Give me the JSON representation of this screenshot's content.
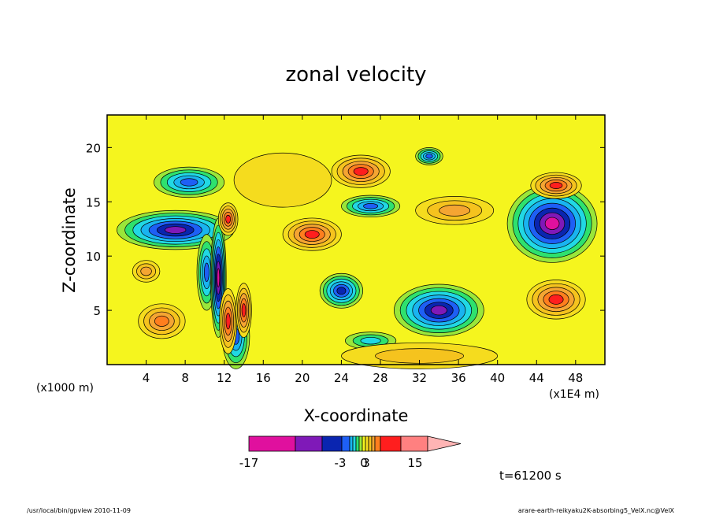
{
  "chart_data": {
    "type": "heatmap",
    "title": "zonal velocity",
    "xlabel": "X-coordinate",
    "ylabel": "Z-coordinate",
    "x_unit_left": "(x1000 m)",
    "x_unit_right": "(x1E4 m)",
    "x_ticks": [
      "4",
      "8",
      "12",
      "16",
      "20",
      "24",
      "28",
      "32",
      "36",
      "40",
      "44",
      "48"
    ],
    "y_ticks": [
      "5",
      "10",
      "15",
      "20"
    ],
    "xlim": [
      0,
      51
    ],
    "ylim": [
      0,
      23
    ],
    "colorbar": {
      "levels": [
        -17,
        -9,
        -6,
        -3,
        -2.4,
        -1.8,
        -1.2,
        -0.6,
        0,
        0.6,
        1.2,
        1.8,
        2.4,
        3,
        6,
        9,
        15
      ],
      "colors": [
        "#e0109e",
        "#7f19b8",
        "#0a25b0",
        "#1e5ff5",
        "#19b4f0",
        "#21d8e4",
        "#2ee16e",
        "#9ae63a",
        "#f5f51e",
        "#f5dc1e",
        "#f5c31e",
        "#f5a532",
        "#ff7e1e",
        "#ff1e1e",
        "#ff8080",
        "#ffb4b4"
      ],
      "tick_labels": [
        "-17",
        "-3",
        "0",
        "3",
        "15"
      ]
    },
    "time_label": "t=61200 s",
    "blobs": [
      {
        "x": 45.6,
        "z": 13.0,
        "rx": 4.6,
        "rz": 3.6,
        "v": -11
      },
      {
        "x": 34.0,
        "z": 5.0,
        "rx": 4.6,
        "rz": 2.4,
        "v": -9
      },
      {
        "x": 7.0,
        "z": 12.4,
        "rx": 6.0,
        "rz": 1.8,
        "v": -8
      },
      {
        "x": 24.0,
        "z": 6.8,
        "rx": 2.2,
        "rz": 1.6,
        "v": -4
      },
      {
        "x": 27.0,
        "z": 14.6,
        "rx": 3.0,
        "rz": 1.0,
        "v": -3
      },
      {
        "x": 33.0,
        "z": 19.2,
        "rx": 1.4,
        "rz": 0.8,
        "v": -3
      },
      {
        "x": 8.4,
        "z": 16.8,
        "rx": 3.6,
        "rz": 1.4,
        "v": -3
      },
      {
        "x": 13.2,
        "z": 2.6,
        "rx": 1.4,
        "rz": 3.0,
        "v": -3
      },
      {
        "x": 10.2,
        "z": 8.5,
        "rx": 1.0,
        "rz": 3.5,
        "v": -3
      },
      {
        "x": 27.0,
        "z": 2.2,
        "rx": 2.6,
        "rz": 0.8,
        "v": -1.5
      },
      {
        "x": 11.4,
        "z": 8.0,
        "rx": 0.8,
        "rz": 5.5,
        "v": -14
      },
      {
        "x": 12.4,
        "z": 4.0,
        "rx": 0.9,
        "rz": 3.0,
        "v": 5
      },
      {
        "x": 14.0,
        "z": 5.0,
        "rx": 0.8,
        "rz": 2.5,
        "v": 4
      },
      {
        "x": 12.4,
        "z": 13.4,
        "rx": 1.0,
        "rz": 1.5,
        "v": 3
      },
      {
        "x": 26.0,
        "z": 17.8,
        "rx": 3.0,
        "rz": 1.5,
        "v": 4
      },
      {
        "x": 21.0,
        "z": 12.0,
        "rx": 3.0,
        "rz": 1.5,
        "v": 4
      },
      {
        "x": 35.6,
        "z": 14.2,
        "rx": 4.0,
        "rz": 1.3,
        "v": 2.2
      },
      {
        "x": 46.0,
        "z": 16.5,
        "rx": 2.6,
        "rz": 1.2,
        "v": 4
      },
      {
        "x": 46.0,
        "z": 6.0,
        "rx": 3.0,
        "rz": 1.8,
        "v": 3
      },
      {
        "x": 5.6,
        "z": 4.0,
        "rx": 2.4,
        "rz": 1.6,
        "v": 2.6
      },
      {
        "x": 4.0,
        "z": 8.6,
        "rx": 1.4,
        "rz": 1.0,
        "v": 2
      },
      {
        "x": 32.0,
        "z": 0.8,
        "rx": 8.0,
        "rz": 1.2,
        "v": 1.5
      },
      {
        "x": 18.0,
        "z": 17.0,
        "rx": 5.0,
        "rz": 2.5,
        "v": 1.0
      }
    ]
  },
  "footer": {
    "left": "/usr/local/bin/gpview  2010-11-09",
    "right": "arare-earth-reikyaku2K-absorbing5_VelX.nc@VelX"
  }
}
